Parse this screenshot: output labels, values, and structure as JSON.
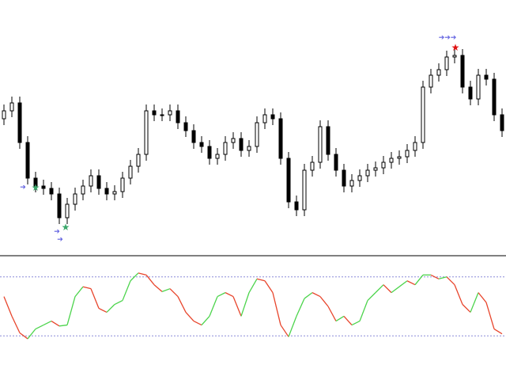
{
  "chart_data": [
    {
      "type": "candlestick",
      "up_color": "#ffffff",
      "down_color": "#000000",
      "outline_color": "#000000",
      "ylim": [
        0,
        250
      ],
      "open": [
        150,
        160,
        170,
        120,
        75,
        65,
        62,
        55,
        25,
        42,
        55,
        65,
        78,
        62,
        55,
        58,
        75,
        90,
        105,
        160,
        155,
        155,
        160,
        145,
        135,
        120,
        115,
        100,
        105,
        120,
        125,
        110,
        115,
        145,
        155,
        150,
        100,
        45,
        35,
        85,
        95,
        140,
        105,
        85,
        65,
        72,
        78,
        85,
        88,
        95,
        100,
        102,
        110,
        120,
        190,
        205,
        212,
        228,
        230,
        190,
        175,
        205,
        200,
        155
      ],
      "high": [
        168,
        178,
        178,
        128,
        83,
        73,
        70,
        63,
        50,
        63,
        73,
        86,
        86,
        70,
        66,
        83,
        98,
        113,
        168,
        168,
        163,
        168,
        168,
        153,
        143,
        128,
        123,
        113,
        128,
        133,
        133,
        123,
        153,
        163,
        163,
        158,
        108,
        53,
        93,
        103,
        148,
        148,
        113,
        93,
        80,
        86,
        93,
        96,
        103,
        108,
        110,
        118,
        128,
        198,
        213,
        220,
        236,
        238,
        238,
        198,
        213,
        213,
        208,
        163
      ],
      "low": [
        142,
        152,
        112,
        67,
        57,
        54,
        47,
        17,
        17,
        34,
        47,
        57,
        54,
        47,
        47,
        50,
        67,
        82,
        97,
        147,
        147,
        147,
        137,
        127,
        112,
        107,
        92,
        92,
        97,
        112,
        102,
        102,
        107,
        137,
        142,
        92,
        37,
        27,
        27,
        77,
        87,
        97,
        77,
        57,
        57,
        64,
        70,
        77,
        80,
        87,
        92,
        94,
        102,
        112,
        182,
        197,
        204,
        220,
        182,
        167,
        167,
        192,
        147,
        127
      ],
      "close": [
        160,
        170,
        120,
        75,
        65,
        62,
        55,
        25,
        42,
        55,
        65,
        78,
        62,
        55,
        58,
        75,
        90,
        105,
        160,
        155,
        155,
        160,
        145,
        135,
        120,
        115,
        100,
        105,
        120,
        125,
        110,
        115,
        145,
        155,
        150,
        100,
        45,
        35,
        85,
        95,
        140,
        105,
        85,
        65,
        72,
        78,
        85,
        88,
        95,
        100,
        102,
        110,
        120,
        190,
        205,
        212,
        228,
        230,
        190,
        175,
        205,
        200,
        155,
        135
      ]
    },
    {
      "type": "line",
      "up_color": "#4cd44c",
      "down_color": "#e8452c",
      "ylim": [
        0,
        100
      ],
      "levels": [
        20,
        80
      ],
      "level_color": "#8a8ad8",
      "values": [
        60,
        40,
        23,
        17,
        27,
        31,
        35,
        30,
        31,
        60,
        70,
        68,
        48,
        44,
        52,
        56,
        76,
        84,
        82,
        72,
        65,
        68,
        60,
        44,
        35,
        31,
        40,
        60,
        64,
        60,
        40,
        64,
        78,
        76,
        64,
        31,
        19,
        40,
        58,
        64,
        60,
        50,
        35,
        40,
        31,
        35,
        56,
        64,
        72,
        64,
        70,
        76,
        72,
        82,
        82,
        78,
        80,
        72,
        52,
        44,
        64,
        54,
        27,
        22
      ]
    }
  ]
}
